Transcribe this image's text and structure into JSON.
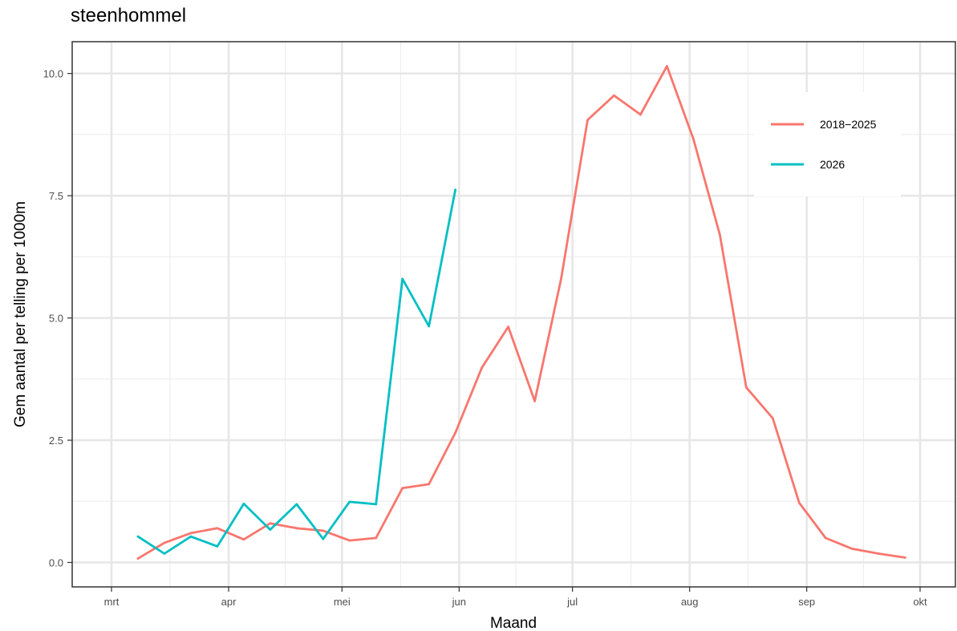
{
  "chart_data": {
    "type": "line",
    "title": "steenhommel",
    "xlabel": "Maand",
    "ylabel": "Gem aantal per telling per 1000m",
    "x_ticks": [
      "mrt",
      "apr",
      "mei",
      "jun",
      "jul",
      "aug",
      "sep",
      "okt"
    ],
    "ylim": [
      -0.5,
      10.65
    ],
    "y_ticks": [
      "0.0",
      "2.5",
      "5.0",
      "7.5",
      "10.0"
    ],
    "y_tick_values": [
      0,
      2.5,
      5,
      7.5,
      10
    ],
    "grid": true,
    "legend_position": "top-right",
    "series": [
      {
        "name": "2018−2025",
        "color": "#F8766D",
        "x": [
          "03-08",
          "03-15",
          "03-22",
          "03-29",
          "04-05",
          "04-12",
          "04-19",
          "04-26",
          "05-03",
          "05-10",
          "05-17",
          "05-24",
          "05-31",
          "06-07",
          "06-14",
          "06-21",
          "06-28",
          "07-05",
          "07-12",
          "07-19",
          "07-26",
          "08-02",
          "08-09",
          "08-16",
          "08-23",
          "08-30",
          "09-06",
          "09-13",
          "09-20",
          "09-27"
        ],
        "values": [
          0.08,
          0.4,
          0.6,
          0.7,
          0.47,
          0.8,
          0.7,
          0.65,
          0.45,
          0.5,
          1.52,
          1.6,
          2.65,
          3.98,
          4.82,
          3.3,
          5.8,
          9.05,
          9.55,
          9.16,
          10.15,
          8.66,
          6.7,
          3.58,
          2.95,
          1.22,
          0.5,
          0.28,
          0.18,
          0.1
        ]
      },
      {
        "name": "2026",
        "color": "#00BFC4",
        "x": [
          "03-08",
          "03-15",
          "03-22",
          "03-29",
          "04-05",
          "04-12",
          "04-19",
          "04-26",
          "05-03",
          "05-10",
          "05-17",
          "05-24",
          "05-31"
        ],
        "values": [
          0.53,
          0.18,
          0.53,
          0.33,
          1.2,
          0.67,
          1.19,
          0.48,
          1.24,
          1.19,
          5.8,
          4.83,
          7.62
        ]
      }
    ]
  }
}
